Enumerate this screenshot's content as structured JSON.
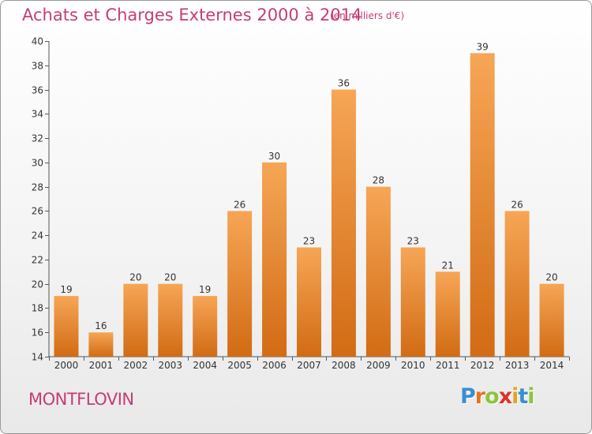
{
  "header": {
    "title": "Achats et Charges Externes 2000 à 2014",
    "subtitle": "(en milliers d'€)"
  },
  "footer": {
    "commune": "MONTFLOVIN",
    "logo_letters": [
      "P",
      "r",
      "o",
      "x",
      "i",
      "t",
      "i"
    ],
    "logo_colors": [
      "#3a8fd1",
      "#e8731c",
      "#8cc43c",
      "#e0312c",
      "#e5a421",
      "#3a8fd1",
      "#8cc43c"
    ]
  },
  "chart_data": {
    "type": "bar",
    "categories": [
      "2000",
      "2001",
      "2002",
      "2003",
      "2004",
      "2005",
      "2006",
      "2007",
      "2008",
      "2009",
      "2010",
      "2011",
      "2012",
      "2013",
      "2014"
    ],
    "values": [
      19,
      16,
      20,
      20,
      19,
      26,
      30,
      23,
      36,
      28,
      23,
      21,
      39,
      26,
      20
    ],
    "ylim": [
      14,
      40
    ],
    "yticks": [
      14,
      16,
      18,
      20,
      22,
      24,
      26,
      28,
      30,
      32,
      34,
      36,
      38,
      40
    ],
    "grid": false,
    "bar_color_light": "#f6a656",
    "bar_color_dark": "#d26b14",
    "title_color": "#c43d7a"
  }
}
